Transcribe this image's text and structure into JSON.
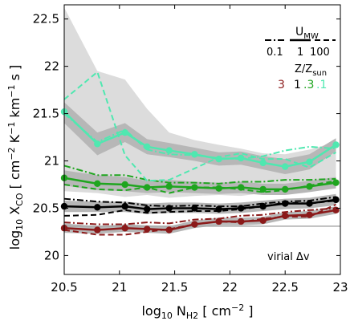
{
  "chart_data": {
    "type": "line",
    "xlabel": "log10 N_H2 [ cm^-2 ]",
    "ylabel": "log10 X_CO [ cm^-2 K^-1 km^-1 s ]",
    "xlim": [
      20.5,
      23.0
    ],
    "ylim": [
      19.8,
      22.65
    ],
    "x_ticks": [
      "20.5",
      "21",
      "21.5",
      "22",
      "22.5",
      "23"
    ],
    "y_ticks": [
      "20",
      "20.5",
      "21",
      "21.5",
      "22",
      "22.5"
    ],
    "grid": false,
    "annotation": "virial Δv",
    "virial_level": 20.31,
    "legend": {
      "umw_title": "U",
      "umw_sub": "MW",
      "umw_values": [
        "0.1",
        "1",
        "100"
      ],
      "z_title": "Z/Z",
      "z_sub": "sun",
      "z_values": [
        "3",
        "1",
        ".3",
        ".1"
      ],
      "z_colors": [
        "#8b1a1a",
        "#000000",
        "#1fa51f",
        "#4fe8b0"
      ]
    },
    "x": [
      20.5,
      20.8,
      21.05,
      21.25,
      21.45,
      21.68,
      21.9,
      22.1,
      22.3,
      22.5,
      22.72,
      22.96
    ],
    "series": [
      {
        "name": "3",
        "color": "#8b1a1a",
        "values": [
          20.29,
          20.27,
          20.29,
          20.28,
          20.27,
          20.33,
          20.36,
          20.36,
          20.37,
          20.42,
          20.43,
          20.48
        ],
        "dashed": [
          20.27,
          20.22,
          20.22,
          20.25,
          20.28,
          20.33,
          20.36,
          20.35,
          20.39,
          20.41,
          20.41,
          20.54
        ],
        "dashdot": [
          20.35,
          20.33,
          20.33,
          20.35,
          20.34,
          20.38,
          20.39,
          20.42,
          20.43,
          20.46,
          20.48,
          20.5
        ],
        "band": [
          [
            20.24,
            20.34
          ],
          [
            20.23,
            20.31
          ],
          [
            20.25,
            20.33
          ],
          [
            20.24,
            20.32
          ],
          [
            20.23,
            20.31
          ],
          [
            20.29,
            20.37
          ],
          [
            20.32,
            20.4
          ],
          [
            20.32,
            20.4
          ],
          [
            20.33,
            20.41
          ],
          [
            20.38,
            20.46
          ],
          [
            20.39,
            20.47
          ],
          [
            20.44,
            20.52
          ]
        ]
      },
      {
        "name": "1",
        "color": "#000000",
        "values": [
          20.52,
          20.51,
          20.52,
          20.49,
          20.5,
          20.5,
          20.49,
          20.5,
          20.52,
          20.55,
          20.55,
          20.59
        ],
        "dashed": [
          20.42,
          20.43,
          20.48,
          20.45,
          20.46,
          20.47,
          20.47,
          20.49,
          20.52,
          20.56,
          20.55,
          20.58
        ],
        "dashdot": [
          20.6,
          20.57,
          20.56,
          20.53,
          20.52,
          20.53,
          20.52,
          20.52,
          20.55,
          20.57,
          20.58,
          20.62
        ],
        "band": [
          [
            20.46,
            20.58
          ],
          [
            20.46,
            20.57
          ],
          [
            20.46,
            20.57
          ],
          [
            20.44,
            20.55
          ],
          [
            20.45,
            20.56
          ],
          [
            20.45,
            20.56
          ],
          [
            20.44,
            20.55
          ],
          [
            20.45,
            20.56
          ],
          [
            20.47,
            20.58
          ],
          [
            20.49,
            20.6
          ],
          [
            20.5,
            20.61
          ],
          [
            20.53,
            20.65
          ]
        ]
      },
      {
        "name": ".3",
        "color": "#1fa51f",
        "values": [
          20.82,
          20.76,
          20.75,
          20.72,
          20.73,
          20.72,
          20.71,
          20.72,
          20.7,
          20.7,
          20.73,
          20.77
        ],
        "dashed": [
          20.75,
          20.7,
          20.69,
          20.72,
          20.66,
          20.72,
          20.72,
          20.7,
          20.67,
          20.69,
          20.74,
          20.79
        ],
        "dashdot": [
          20.95,
          20.85,
          20.85,
          20.8,
          20.77,
          20.77,
          20.76,
          20.78,
          20.78,
          20.8,
          20.8,
          20.81
        ],
        "band": [
          [
            20.74,
            20.9
          ],
          [
            20.69,
            20.85
          ],
          [
            20.68,
            20.83
          ],
          [
            20.66,
            20.79
          ],
          [
            20.67,
            20.8
          ],
          [
            20.66,
            20.78
          ],
          [
            20.65,
            20.77
          ],
          [
            20.66,
            20.78
          ],
          [
            20.64,
            20.76
          ],
          [
            20.64,
            20.76
          ],
          [
            20.67,
            20.79
          ],
          [
            20.71,
            20.83
          ]
        ]
      },
      {
        "name": ".1",
        "color": "#4fe8b0",
        "values": [
          21.52,
          21.18,
          21.3,
          21.15,
          21.11,
          21.07,
          21.02,
          21.03,
          20.98,
          20.94,
          20.99,
          21.17
        ],
        "dashed": [
          21.65,
          21.94,
          21.06,
          20.79,
          20.8,
          20.92,
          21.04,
          21.08,
          21.02,
          21.02,
          20.93,
          21.09
        ],
        "dashdot": [
          21.5,
          21.2,
          21.33,
          21.12,
          21.07,
          21.06,
          21.03,
          21.02,
          21.05,
          21.11,
          21.15,
          21.13
        ],
        "band": [
          [
            21.4,
            21.62
          ],
          [
            21.06,
            21.3
          ],
          [
            21.2,
            21.4
          ],
          [
            21.07,
            21.23
          ],
          [
            21.04,
            21.19
          ],
          [
            21.0,
            21.14
          ],
          [
            20.95,
            21.09
          ],
          [
            20.96,
            21.1
          ],
          [
            20.91,
            21.05
          ],
          [
            20.86,
            21.02
          ],
          [
            20.91,
            21.07
          ],
          [
            21.1,
            21.24
          ]
        ]
      }
    ],
    "envelope": [
      [
        20.68,
        22.62
      ],
      [
        20.66,
        21.95
      ],
      [
        20.62,
        21.86
      ],
      [
        20.64,
        21.55
      ],
      [
        20.61,
        21.3
      ],
      [
        20.63,
        21.22
      ],
      [
        20.64,
        21.17
      ],
      [
        20.63,
        21.13
      ],
      [
        20.66,
        21.08
      ],
      [
        20.72,
        21.07
      ],
      [
        20.74,
        21.12
      ],
      [
        20.77,
        21.2
      ]
    ]
  }
}
